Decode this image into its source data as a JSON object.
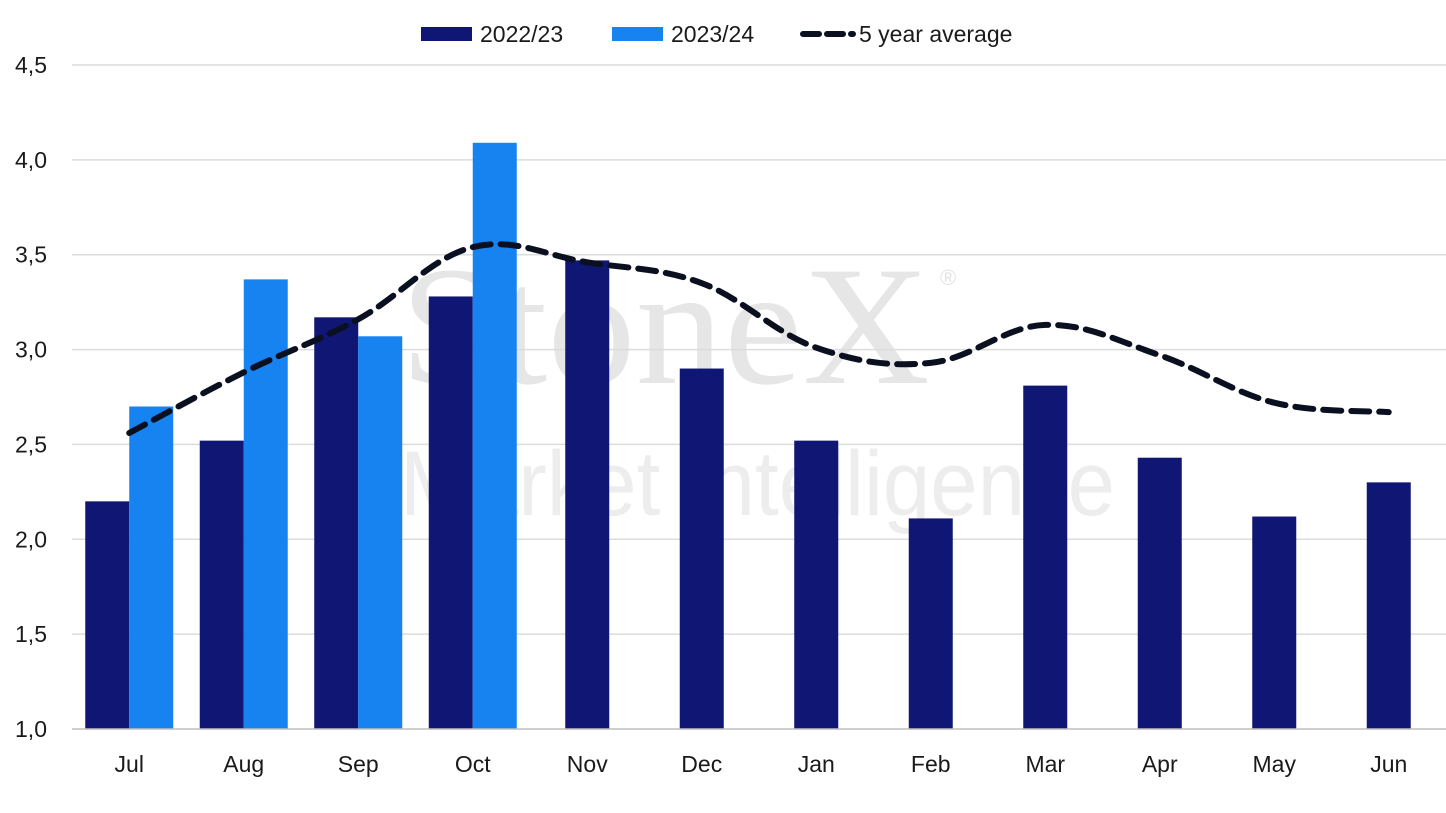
{
  "watermark": {
    "brand": "StoneX",
    "registered": "®",
    "tagline": "Market Intelligence"
  },
  "colors": {
    "series_2022_23": "#0f1674",
    "series_2023_24": "#1683f1",
    "avg_line": "#0b1020",
    "grid": "#dcdcdc",
    "axis": "#bfbfbf"
  },
  "chart_data": {
    "type": "bar",
    "title": "",
    "xlabel": "",
    "ylabel": "",
    "ylim": [
      1.0,
      4.5
    ],
    "yticks": [
      "1,0",
      "1,5",
      "2,0",
      "2,5",
      "3,0",
      "3,5",
      "4,0",
      "4,5"
    ],
    "ytick_values": [
      1.0,
      1.5,
      2.0,
      2.5,
      3.0,
      3.5,
      4.0,
      4.5
    ],
    "grid": true,
    "legend_position": "top-center",
    "categories": [
      "Jul",
      "Aug",
      "Sep",
      "Oct",
      "Nov",
      "Dec",
      "Jan",
      "Feb",
      "Mar",
      "Apr",
      "May",
      "Jun"
    ],
    "series": [
      {
        "name": "2022/23",
        "type": "bar",
        "values": [
          2.2,
          2.52,
          3.17,
          3.28,
          3.47,
          2.9,
          2.52,
          2.11,
          2.81,
          2.43,
          2.12,
          2.3
        ]
      },
      {
        "name": "2023/24",
        "type": "bar",
        "values": [
          2.7,
          3.37,
          3.07,
          4.09,
          null,
          null,
          null,
          null,
          null,
          null,
          null,
          null
        ]
      },
      {
        "name": "5 year average",
        "type": "line",
        "style": "dashed",
        "values": [
          2.56,
          2.88,
          3.16,
          3.54,
          3.46,
          3.35,
          3.01,
          2.93,
          3.13,
          2.97,
          2.72,
          2.67
        ]
      }
    ]
  }
}
